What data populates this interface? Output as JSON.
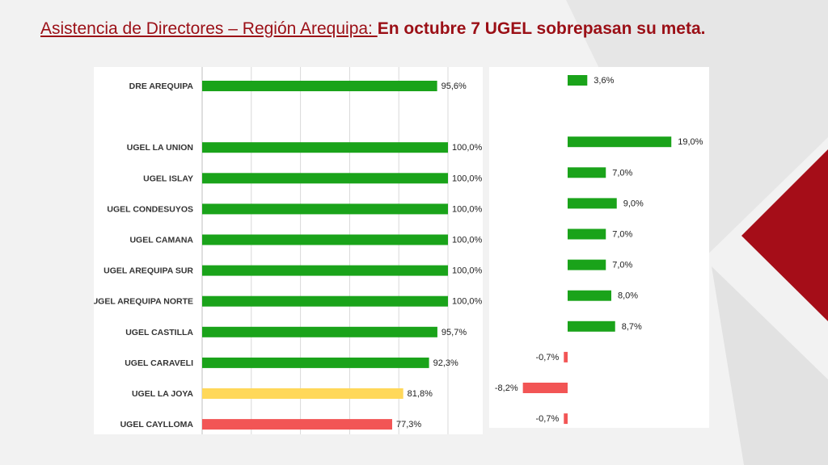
{
  "title": {
    "prefix": "Asistencia de Directores – Región Arequipa: ",
    "main": "En octubre 7 UGEL sobrepasan su meta."
  },
  "colors": {
    "title": "#9b0f16",
    "green": "#1aa31a",
    "yellow": "#ffd85a",
    "red": "#f25555",
    "accent_triangle": "#a50d18",
    "grid": "#d9d9d9",
    "axis": "#bfbfbf"
  },
  "chart_data": [
    {
      "type": "bar",
      "orientation": "horizontal",
      "categories": [
        "DRE AREQUIPA",
        "",
        "UGEL LA UNION",
        "UGEL ISLAY",
        "UGEL CONDESUYOS",
        "UGEL CAMANA",
        "UGEL AREQUIPA SUR",
        "UGEL AREQUIPA NORTE",
        "UGEL CASTILLA",
        "UGEL CARAVELI",
        "UGEL LA JOYA",
        "UGEL CAYLLOMA"
      ],
      "values": [
        95.6,
        null,
        100.0,
        100.0,
        100.0,
        100.0,
        100.0,
        100.0,
        95.7,
        92.3,
        81.8,
        77.3
      ],
      "labels": [
        "95,6%",
        "",
        "100,0%",
        "100,0%",
        "100,0%",
        "100,0%",
        "100,0%",
        "100,0%",
        "95,7%",
        "92,3%",
        "81,8%",
        "77,3%"
      ],
      "bar_colors": [
        "green",
        "",
        "green",
        "green",
        "green",
        "green",
        "green",
        "green",
        "green",
        "green",
        "yellow",
        "red"
      ],
      "xlim": [
        0,
        100
      ],
      "grid": true
    },
    {
      "type": "bar",
      "orientation": "horizontal",
      "categories": [
        "DRE AREQUIPA",
        "",
        "UGEL LA UNION",
        "UGEL ISLAY",
        "UGEL CONDESUYOS",
        "UGEL CAMANA",
        "UGEL AREQUIPA SUR",
        "UGEL AREQUIPA NORTE",
        "UGEL CASTILLA",
        "UGEL CARAVELI",
        "UGEL LA JOYA",
        "UGEL CAYLLOMA"
      ],
      "values": [
        3.6,
        null,
        19.0,
        7.0,
        9.0,
        7.0,
        7.0,
        8.0,
        8.7,
        -0.7,
        -8.2,
        -0.7
      ],
      "labels": [
        "3,6%",
        "",
        "19,0%",
        "7,0%",
        "9,0%",
        "7,0%",
        "7,0%",
        "8,0%",
        "8,7%",
        "-0,7%",
        "-8,2%",
        "-0,7%"
      ],
      "xlim": [
        -10,
        20
      ],
      "grid": false
    }
  ]
}
